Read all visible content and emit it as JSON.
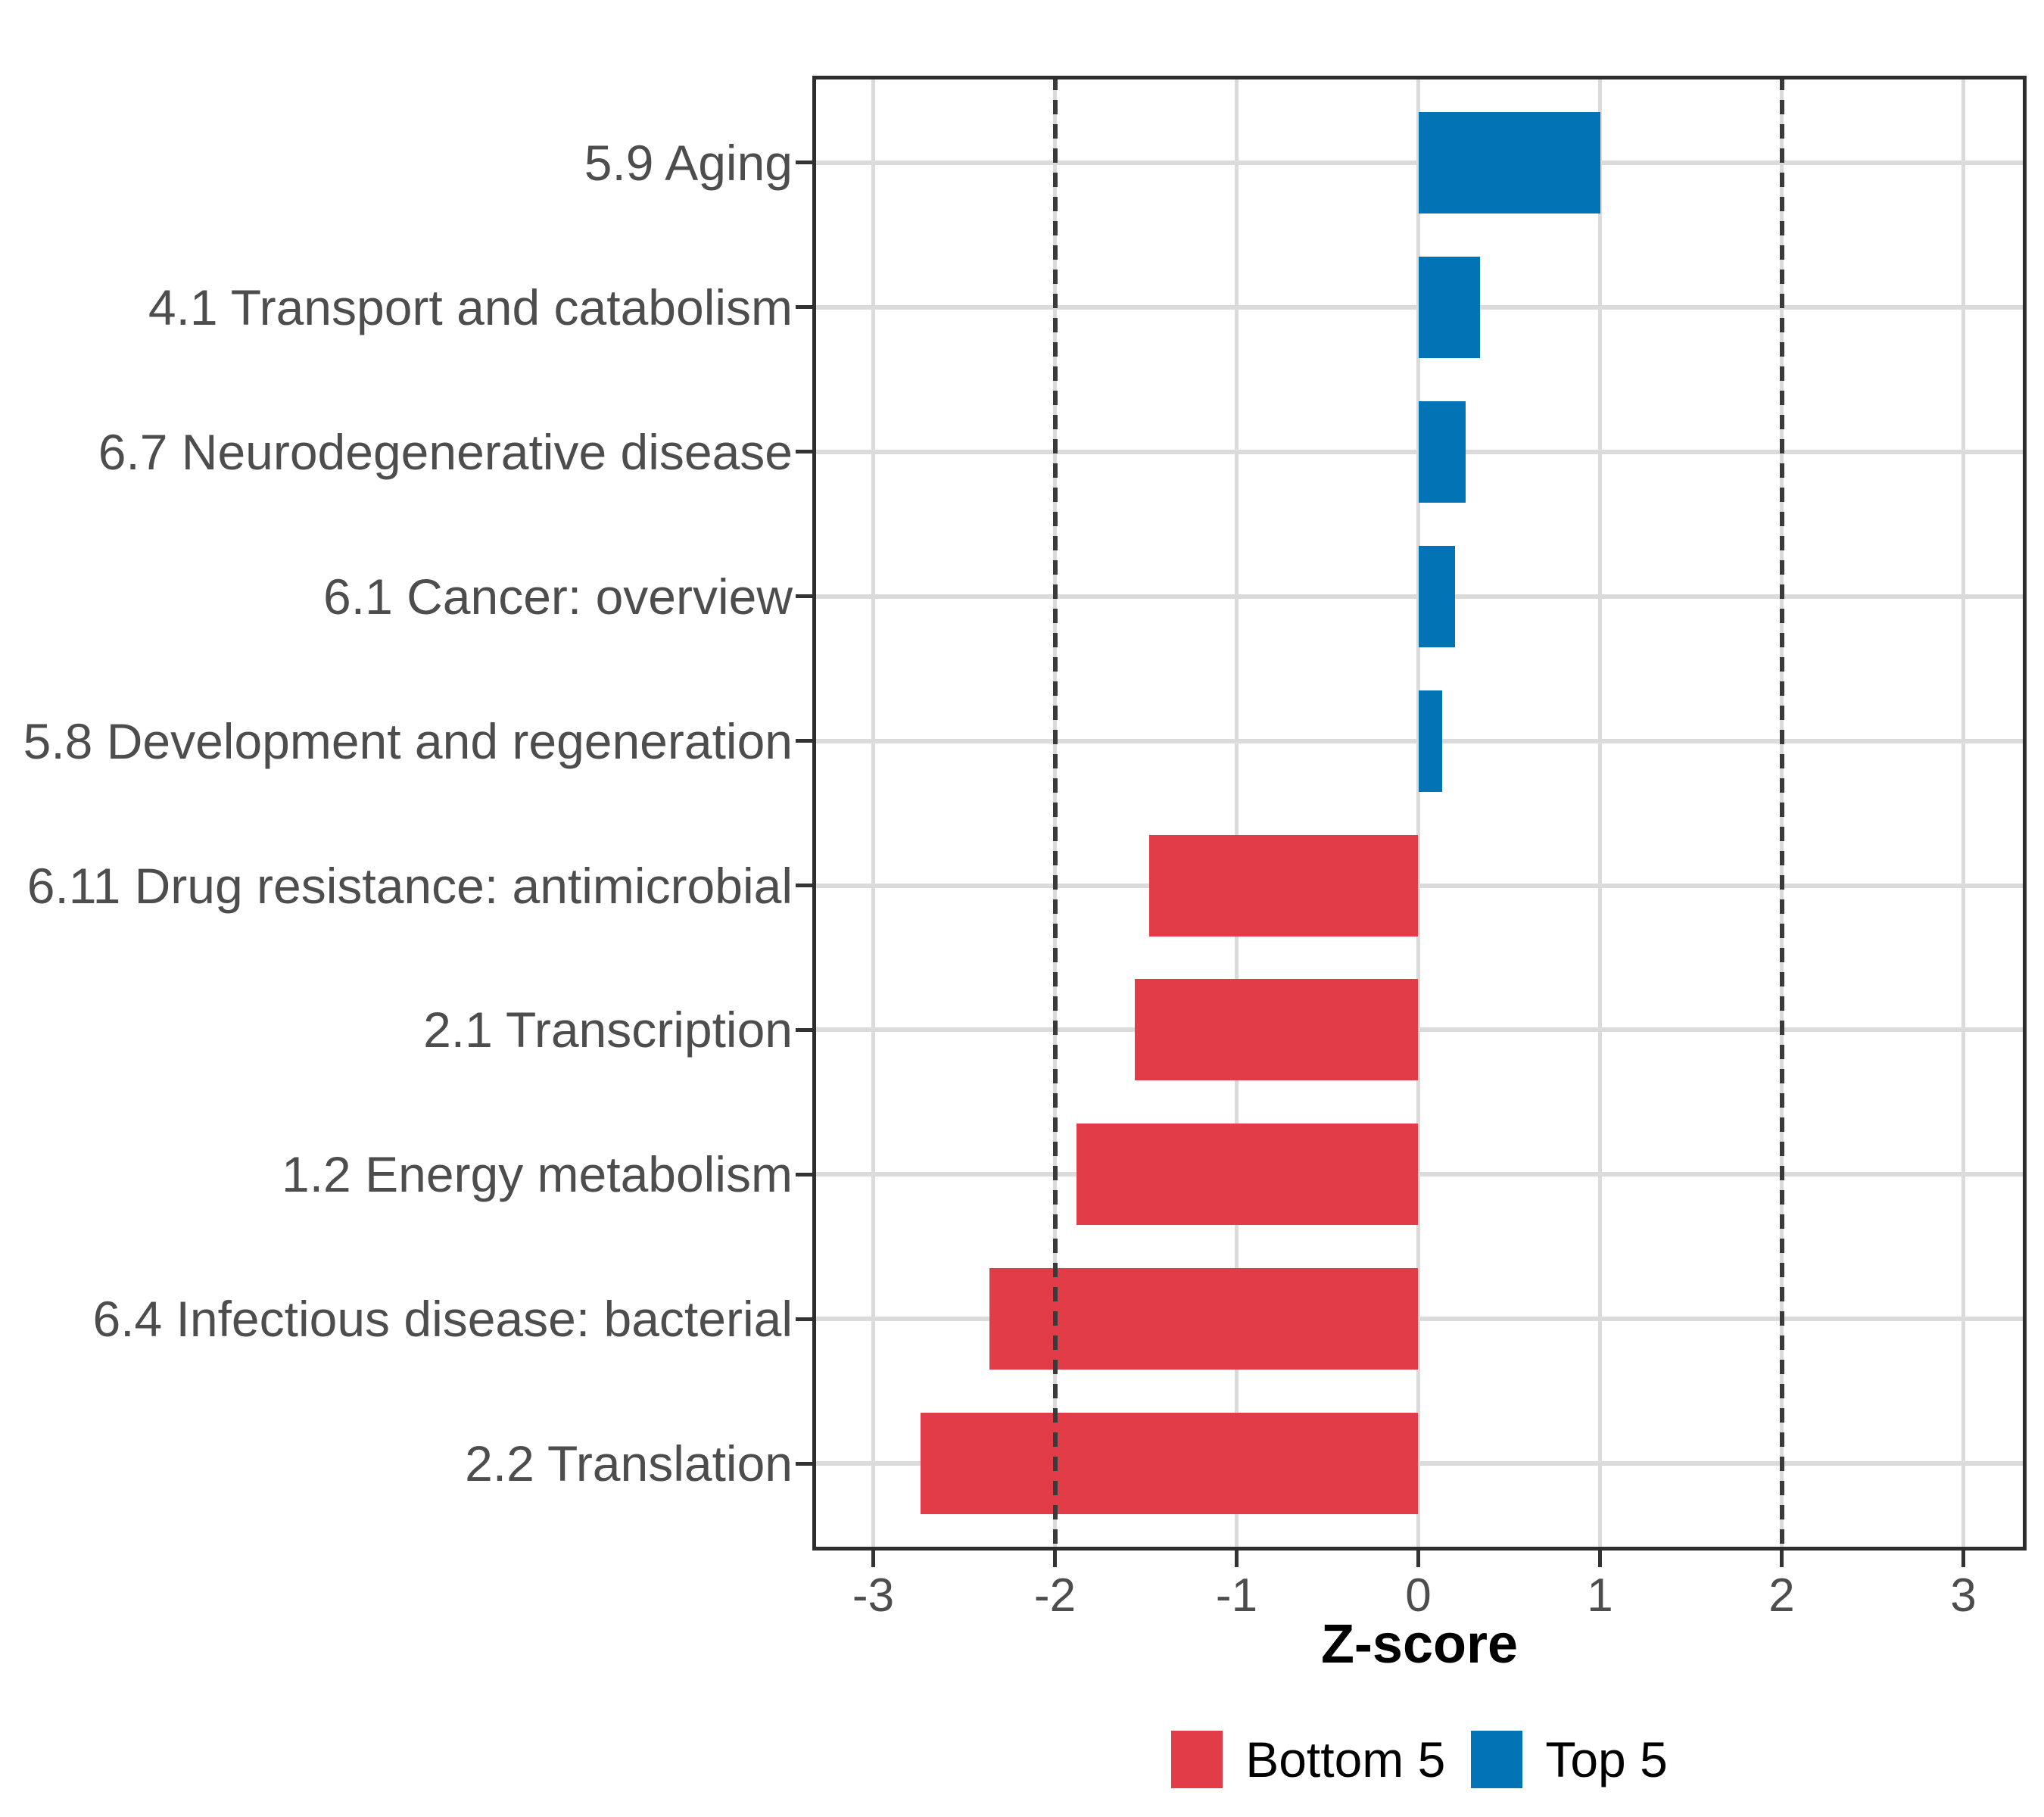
{
  "chart_data": {
    "type": "bar",
    "orientation": "horizontal",
    "title": "",
    "xlabel": "Z-score",
    "ylabel": "",
    "x_tick_labels": [
      "-3",
      "-2",
      "-1",
      "0",
      "1",
      "2",
      "3"
    ],
    "x_tick_values": [
      -3,
      -2,
      -1,
      0,
      1,
      2,
      3
    ],
    "xlim": [
      -3.34,
      3.35
    ],
    "grid": true,
    "reference_lines": {
      "style": "dashed",
      "color": "#3a3a3a",
      "values": [
        -2,
        2
      ]
    },
    "categories": [
      "5.9 Aging",
      "4.1 Transport and catabolism",
      "6.7 Neurodegenerative disease",
      "6.1 Cancer: overview",
      "5.8 Development and regeneration",
      "6.11 Drug resistance: antimicrobial",
      "2.1 Transcription",
      "1.2 Energy metabolism",
      "6.4 Infectious disease: bacterial",
      "2.2 Translation"
    ],
    "bars": [
      {
        "category": "5.9 Aging",
        "value": 1.0,
        "group": "Top 5"
      },
      {
        "category": "4.1 Transport and catabolism",
        "value": 0.34,
        "group": "Top 5"
      },
      {
        "category": "6.7 Neurodegenerative disease",
        "value": 0.26,
        "group": "Top 5"
      },
      {
        "category": "6.1 Cancer: overview",
        "value": 0.2,
        "group": "Top 5"
      },
      {
        "category": "5.8 Development and regeneration",
        "value": 0.13,
        "group": "Top 5"
      },
      {
        "category": "6.11 Drug resistance: antimicrobial",
        "value": -1.48,
        "group": "Bottom 5"
      },
      {
        "category": "2.1 Transcription",
        "value": -1.56,
        "group": "Bottom 5"
      },
      {
        "category": "1.2 Energy metabolism",
        "value": -1.88,
        "group": "Bottom 5"
      },
      {
        "category": "6.4 Infectious disease: bacterial",
        "value": -2.36,
        "group": "Bottom 5"
      },
      {
        "category": "2.2 Translation",
        "value": -2.74,
        "group": "Bottom 5"
      }
    ],
    "group_colors": {
      "Bottom 5": "#e23c49",
      "Top 5": "#0274b5"
    },
    "legend": {
      "position": "bottom",
      "entries": [
        {
          "label": "Bottom 5",
          "color": "#e23c49"
        },
        {
          "label": "Top 5",
          "color": "#0274b5"
        }
      ]
    }
  },
  "style_colors": {
    "axis_text": "#4d4d4d",
    "gridline": "#dbdbdb",
    "panel_border": "#2e2e2e",
    "dashed_line": "#3a3a3a",
    "background": "#ffffff"
  }
}
